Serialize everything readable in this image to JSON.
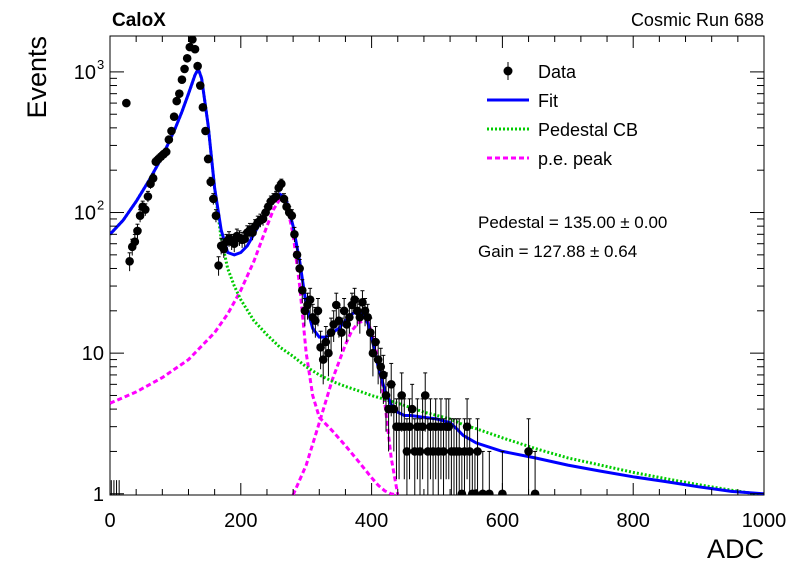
{
  "chart_data": {
    "type": "scatter",
    "experiment_label": "CaloX",
    "run_label": "Cosmic Run 688",
    "xlabel": "ADC",
    "ylabel": "Events",
    "xlim": [
      0,
      1000
    ],
    "ylim": [
      0.98,
      1800
    ],
    "yscale": "log",
    "grid": false,
    "legend_position": "top-right",
    "x_ticks": [
      0,
      200,
      400,
      600,
      800,
      1000
    ],
    "y_ticks": [
      {
        "value": 1,
        "label": "1"
      },
      {
        "value": 10,
        "label": "10"
      },
      {
        "value": 100,
        "label": "10",
        "exp": "2"
      },
      {
        "value": 1000,
        "label": "10",
        "exp": "3"
      }
    ],
    "legend": [
      {
        "label": "Data",
        "style": "marker",
        "color": "#000000"
      },
      {
        "label": "Fit",
        "style": "solid",
        "color": "#0000ff"
      },
      {
        "label": "Pedestal CB",
        "style": "dotted",
        "color": "#00cc00"
      },
      {
        "label": "p.e. peak",
        "style": "dashed",
        "color": "#ff00ff"
      }
    ],
    "annotations": [
      {
        "text": "Pedestal = 135.00 ± 0.00"
      },
      {
        "text": "Gain = 127.88 ± 0.64"
      }
    ],
    "data": {
      "name": "Data",
      "points": [
        [
          25,
          600
        ],
        [
          30,
          45
        ],
        [
          34,
          57
        ],
        [
          38,
          62
        ],
        [
          42,
          74
        ],
        [
          46,
          95
        ],
        [
          50,
          110
        ],
        [
          54,
          105
        ],
        [
          58,
          130
        ],
        [
          62,
          160
        ],
        [
          66,
          175
        ],
        [
          70,
          230
        ],
        [
          74,
          240
        ],
        [
          78,
          250
        ],
        [
          82,
          260
        ],
        [
          86,
          270
        ],
        [
          90,
          330
        ],
        [
          94,
          380
        ],
        [
          98,
          480
        ],
        [
          102,
          620
        ],
        [
          106,
          700
        ],
        [
          110,
          880
        ],
        [
          114,
          1050
        ],
        [
          118,
          1250
        ],
        [
          122,
          1500
        ],
        [
          126,
          1700
        ],
        [
          130,
          1450
        ],
        [
          134,
          1100
        ],
        [
          138,
          800
        ],
        [
          142,
          560
        ],
        [
          146,
          380
        ],
        [
          150,
          240
        ],
        [
          154,
          165
        ],
        [
          158,
          125
        ],
        [
          162,
          95
        ],
        [
          166,
          42
        ],
        [
          170,
          58
        ],
        [
          174,
          55
        ],
        [
          178,
          62
        ],
        [
          182,
          65
        ],
        [
          186,
          62
        ],
        [
          190,
          60
        ],
        [
          194,
          68
        ],
        [
          198,
          66
        ],
        [
          202,
          64
        ],
        [
          206,
          65
        ],
        [
          210,
          72
        ],
        [
          214,
          75
        ],
        [
          218,
          72
        ],
        [
          222,
          80
        ],
        [
          226,
          85
        ],
        [
          230,
          88
        ],
        [
          234,
          90
        ],
        [
          238,
          100
        ],
        [
          242,
          110
        ],
        [
          246,
          120
        ],
        [
          250,
          125
        ],
        [
          254,
          130
        ],
        [
          258,
          150
        ],
        [
          262,
          160
        ],
        [
          266,
          125
        ],
        [
          270,
          110
        ],
        [
          274,
          100
        ],
        [
          278,
          95
        ],
        [
          282,
          70
        ],
        [
          286,
          50
        ],
        [
          290,
          40
        ],
        [
          294,
          28
        ],
        [
          298,
          20
        ],
        [
          302,
          22
        ],
        [
          306,
          24
        ],
        [
          310,
          18
        ],
        [
          314,
          17
        ],
        [
          318,
          20
        ],
        [
          322,
          11
        ],
        [
          326,
          9
        ],
        [
          330,
          12
        ],
        [
          334,
          10
        ],
        [
          338,
          14
        ],
        [
          342,
          16
        ],
        [
          346,
          22
        ],
        [
          350,
          17
        ],
        [
          354,
          14
        ],
        [
          358,
          20
        ],
        [
          362,
          16
        ],
        [
          366,
          18
        ],
        [
          370,
          22
        ],
        [
          374,
          24
        ],
        [
          378,
          20
        ],
        [
          382,
          18
        ],
        [
          386,
          23
        ],
        [
          390,
          20
        ],
        [
          394,
          18
        ],
        [
          398,
          14
        ],
        [
          402,
          10
        ],
        [
          406,
          12
        ],
        [
          410,
          9
        ],
        [
          414,
          8
        ],
        [
          418,
          7
        ],
        [
          422,
          5
        ],
        [
          426,
          4
        ],
        [
          430,
          6
        ],
        [
          434,
          4
        ],
        [
          438,
          3
        ],
        [
          442,
          3
        ],
        [
          446,
          5
        ],
        [
          450,
          3
        ],
        [
          454,
          2
        ],
        [
          458,
          3
        ],
        [
          462,
          4
        ],
        [
          466,
          2
        ],
        [
          470,
          3
        ],
        [
          474,
          2
        ],
        [
          478,
          3
        ],
        [
          482,
          5
        ],
        [
          486,
          2
        ],
        [
          490,
          3
        ],
        [
          494,
          2
        ],
        [
          498,
          3
        ],
        [
          502,
          2
        ],
        [
          506,
          3
        ],
        [
          510,
          2
        ],
        [
          514,
          3
        ],
        [
          518,
          3
        ],
        [
          522,
          2
        ],
        [
          526,
          2
        ],
        [
          530,
          2
        ],
        [
          534,
          2
        ],
        [
          538,
          1
        ],
        [
          542,
          2
        ],
        [
          546,
          3
        ],
        [
          550,
          2
        ],
        [
          554,
          1
        ],
        [
          558,
          1
        ],
        [
          562,
          2
        ],
        [
          570,
          1
        ],
        [
          580,
          1
        ],
        [
          600,
          1
        ],
        [
          640,
          2
        ],
        [
          650,
          1
        ]
      ]
    },
    "series": [
      {
        "name": "Fit",
        "x": [
          0,
          20,
          40,
          60,
          80,
          100,
          110,
          120,
          130,
          135,
          140,
          150,
          160,
          170,
          180,
          190,
          200,
          210,
          220,
          230,
          240,
          250,
          260,
          265,
          270,
          280,
          290,
          300,
          310,
          320,
          330,
          340,
          350,
          360,
          370,
          380,
          390,
          395,
          400,
          410,
          420,
          430,
          440,
          450,
          460,
          480,
          500,
          520,
          530,
          540,
          560,
          600,
          650,
          700,
          750,
          800,
          850,
          900,
          950,
          1000
        ],
        "y": [
          70,
          88,
          120,
          170,
          250,
          400,
          520,
          700,
          950,
          1050,
          900,
          420,
          150,
          75,
          52,
          50,
          52,
          58,
          70,
          85,
          105,
          120,
          135,
          130,
          120,
          80,
          45,
          22,
          15,
          13,
          13,
          14,
          15,
          17,
          19,
          20,
          18,
          16,
          13,
          8,
          5.5,
          4.3,
          3.8,
          3.6,
          3.6,
          3.5,
          3.4,
          3.2,
          2.9,
          2.6,
          2.3,
          2.0,
          1.8,
          1.6,
          1.45,
          1.32,
          1.22,
          1.12,
          1.04,
          1.0
        ]
      },
      {
        "name": "Pedestal CB",
        "x": [
          0,
          20,
          40,
          60,
          80,
          100,
          110,
          120,
          130,
          135,
          140,
          150,
          160,
          170,
          180,
          190,
          200,
          220,
          240,
          260,
          280,
          300,
          320,
          340,
          360,
          380,
          400,
          420,
          440,
          460,
          480,
          500,
          520,
          540,
          560,
          600,
          650,
          700,
          750,
          800,
          850,
          900,
          950,
          1000
        ],
        "y": [
          70,
          88,
          120,
          170,
          250,
          400,
          520,
          700,
          950,
          1050,
          900,
          420,
          150,
          65,
          40,
          30,
          24,
          17,
          13.5,
          11,
          9.5,
          8.0,
          7.0,
          6.3,
          5.8,
          5.4,
          5.0,
          4.7,
          4.4,
          4.1,
          3.8,
          3.6,
          3.4,
          3.1,
          2.9,
          2.5,
          2.1,
          1.8,
          1.6,
          1.42,
          1.28,
          1.16,
          1.06,
          0.98
        ]
      },
      {
        "name": "p.e. peak",
        "x": [
          0,
          40,
          80,
          120,
          160,
          180,
          200,
          220,
          240,
          250,
          260,
          265,
          270,
          280,
          290,
          300,
          310,
          320,
          340,
          360,
          380,
          400,
          410,
          420,
          430,
          440
        ],
        "y": [
          4.4,
          5.3,
          6.7,
          9.0,
          14,
          19,
          28,
          45,
          80,
          105,
          125,
          128,
          115,
          70,
          30,
          10,
          5.0,
          3.5,
          2.8,
          2.2,
          1.7,
          1.3,
          1.15,
          1.05,
          1.0,
          0.98
        ]
      },
      {
        "name": "p.e. peak",
        "x": [
          280,
          300,
          320,
          340,
          360,
          370,
          380,
          390,
          395,
          400,
          410,
          420,
          430,
          440
        ],
        "y": [
          0.98,
          1.6,
          3.2,
          6.5,
          11.5,
          14.5,
          16.5,
          17,
          16.5,
          14,
          9,
          4.5,
          1.8,
          0.98
        ]
      }
    ]
  }
}
